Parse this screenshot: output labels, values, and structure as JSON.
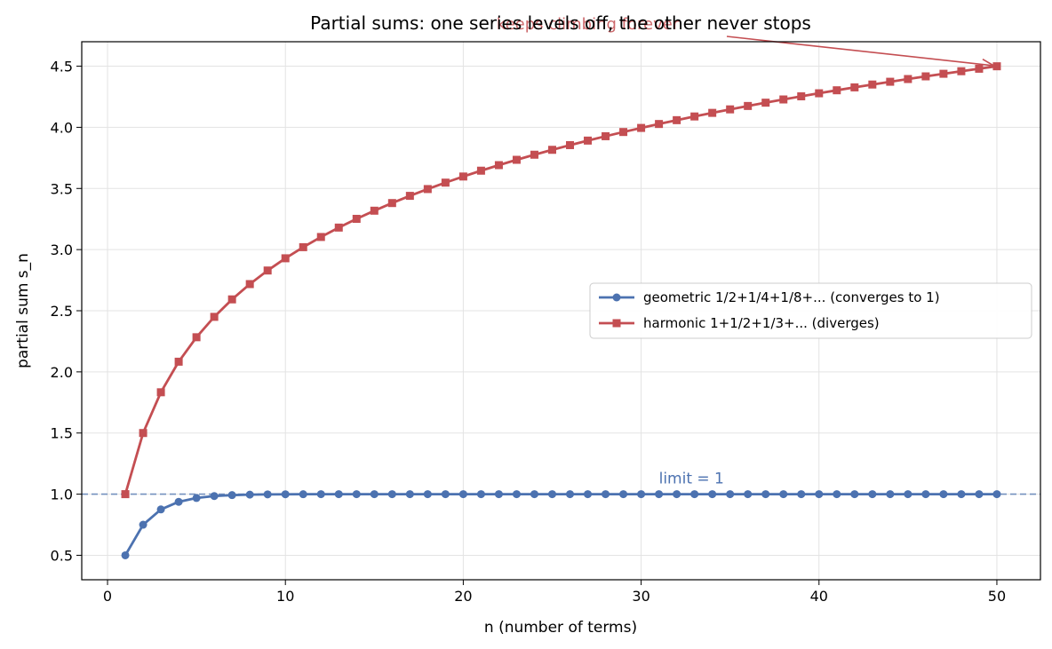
{
  "chart_data": {
    "type": "line",
    "title": "Partial sums: one series levels off, the other never stops",
    "xlabel": "n  (number of terms)",
    "ylabel": "partial sum  s_n",
    "xlim": [
      -1.45,
      52.45
    ],
    "ylim": [
      0.3,
      4.7
    ],
    "xticks": [
      0,
      10,
      20,
      30,
      40,
      50
    ],
    "yticks": [
      0.5,
      1.0,
      1.5,
      2.0,
      2.5,
      3.0,
      3.5,
      4.0,
      4.5
    ],
    "xtick_labels": [
      "0",
      "10",
      "20",
      "30",
      "40",
      "50"
    ],
    "ytick_labels": [
      "0.5",
      "1.0",
      "1.5",
      "2.0",
      "2.5",
      "3.0",
      "3.5",
      "4.0",
      "4.5"
    ],
    "grid": true,
    "legend_position": "center-right",
    "x": [
      1,
      2,
      3,
      4,
      5,
      6,
      7,
      8,
      9,
      10,
      11,
      12,
      13,
      14,
      15,
      16,
      17,
      18,
      19,
      20,
      21,
      22,
      23,
      24,
      25,
      26,
      27,
      28,
      29,
      30,
      31,
      32,
      33,
      34,
      35,
      36,
      37,
      38,
      39,
      40,
      41,
      42,
      43,
      44,
      45,
      46,
      47,
      48,
      49,
      50
    ],
    "series": [
      {
        "name": "geometric  1/2+1/4+1/8+...  (converges to 1)",
        "color": "#4c72b0",
        "marker": "circle",
        "values": [
          0.5,
          0.75,
          0.875,
          0.9375,
          0.9688,
          0.9844,
          0.9922,
          0.9961,
          0.998,
          0.999,
          0.9995,
          0.9998,
          0.9999,
          0.9999,
          1.0,
          1.0,
          1.0,
          1.0,
          1.0,
          1.0,
          1.0,
          1.0,
          1.0,
          1.0,
          1.0,
          1.0,
          1.0,
          1.0,
          1.0,
          1.0,
          1.0,
          1.0,
          1.0,
          1.0,
          1.0,
          1.0,
          1.0,
          1.0,
          1.0,
          1.0,
          1.0,
          1.0,
          1.0,
          1.0,
          1.0,
          1.0,
          1.0,
          1.0,
          1.0,
          1.0
        ]
      },
      {
        "name": "harmonic  1+1/2+1/3+...  (diverges)",
        "color": "#c44e52",
        "marker": "square",
        "values": [
          1.0,
          1.5,
          1.8333,
          2.0833,
          2.2833,
          2.45,
          2.5929,
          2.7179,
          2.829,
          2.929,
          3.0199,
          3.1032,
          3.1801,
          3.2516,
          3.3182,
          3.3807,
          3.4396,
          3.4951,
          3.5477,
          3.5977,
          3.6454,
          3.6908,
          3.7343,
          3.776,
          3.816,
          3.8544,
          3.8915,
          3.9272,
          3.9617,
          3.995,
          4.0272,
          4.0585,
          4.0888,
          4.1182,
          4.1468,
          4.1746,
          4.2016,
          4.2279,
          4.2535,
          4.2785,
          4.3029,
          4.3267,
          4.35,
          4.3727,
          4.3949,
          4.4167,
          4.4379,
          4.4588,
          4.4792,
          4.4992
        ]
      }
    ],
    "reference_line": {
      "y": 1.0,
      "label": "limit = 1",
      "color": "#4c72b0",
      "style": "dashed",
      "label_x": 31.0,
      "label_y": 1.13
    },
    "annotation": {
      "text": "keeps climbing forever",
      "color": "#c44e52",
      "text_x": 27.0,
      "text_y": 4.87,
      "target_x": 50,
      "target_y": 4.4992
    }
  }
}
